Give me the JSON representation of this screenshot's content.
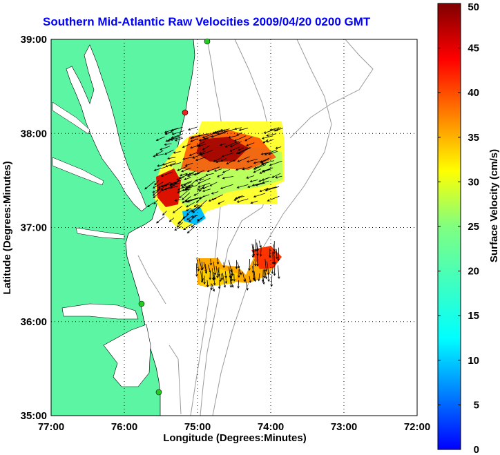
{
  "title": "Southern Mid-Atlantic Raw Velocities 2009/04/20 0200 GMT",
  "map": {
    "x_axis_label": "Longitude (Degrees:Minutes)",
    "y_axis_label": "Latitude (Degrees:Minutes)",
    "x_ticks": [
      "77:00",
      "76:00",
      "75:00",
      "74:00",
      "73:00",
      "72:00"
    ],
    "y_ticks": [
      "39:00",
      "38:00",
      "37:00",
      "36:00",
      "35:00"
    ],
    "lon_range": [
      -77,
      -72
    ],
    "lat_range": [
      35,
      39
    ],
    "grid": "dotted",
    "land_color": "#5cf5a4",
    "bathymetry_color": "#9a9a9a",
    "station_color": "#22cc22",
    "station_alt_color": "#ee2222"
  },
  "colorbar": {
    "label": "Surface Velocity (cm/s)",
    "ticks": [
      "0",
      "5",
      "10",
      "15",
      "20",
      "25",
      "30",
      "35",
      "40",
      "45",
      "50"
    ],
    "range": [
      0,
      50
    ],
    "colormap": "jet"
  }
}
